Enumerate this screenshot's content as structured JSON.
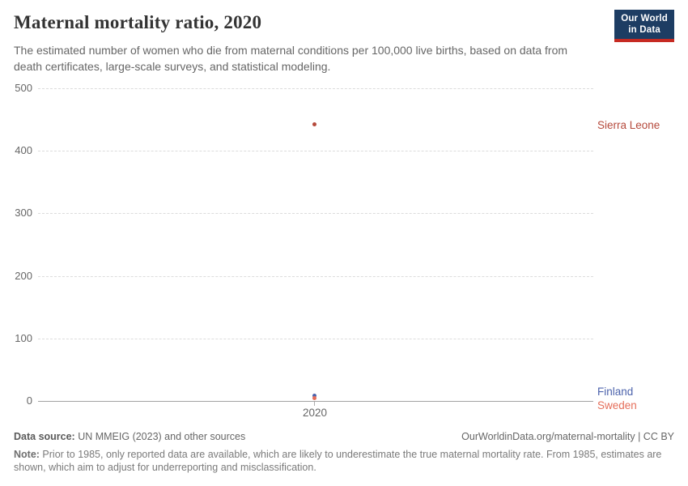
{
  "header": {
    "title": "Maternal mortality ratio, 2020",
    "subtitle": "The estimated number of women who die from maternal conditions per 100,000 live births, based on data from death certificates, large-scale surveys, and statistical modeling.",
    "logo": {
      "line1": "Our World",
      "line2": "in Data",
      "bg_color": "#1d3d63",
      "accent_color": "#c62a22"
    }
  },
  "chart_data": {
    "type": "scatter",
    "title": "Maternal mortality ratio, 2020",
    "x": [
      2020
    ],
    "x_tick_label": "2020",
    "series": [
      {
        "name": "Sierra Leone",
        "values": [
          443
        ],
        "color": "#b5493b"
      },
      {
        "name": "Finland",
        "values": [
          8
        ],
        "color": "#4c63ac"
      },
      {
        "name": "Sweden",
        "values": [
          5
        ],
        "color": "#e56e5a"
      }
    ],
    "xlabel": "",
    "ylabel": "",
    "ylim": [
      0,
      500
    ],
    "yticks": [
      0,
      100,
      200,
      300,
      400,
      500
    ],
    "grid": "horizontal dashed, solid baseline at 0",
    "legend_position": "entity labels at right edge"
  },
  "footer": {
    "data_source_label": "Data source:",
    "data_source_text": " UN MMEIG (2023) and other sources",
    "link": "OurWorldinData.org/maternal-mortality | CC BY",
    "note_label": "Note:",
    "note_text": " Prior to 1985, only reported data are available, which are likely to underestimate the true maternal mortality rate. From 1985, estimates are shown, which aim to adjust for underreporting and misclassification."
  }
}
